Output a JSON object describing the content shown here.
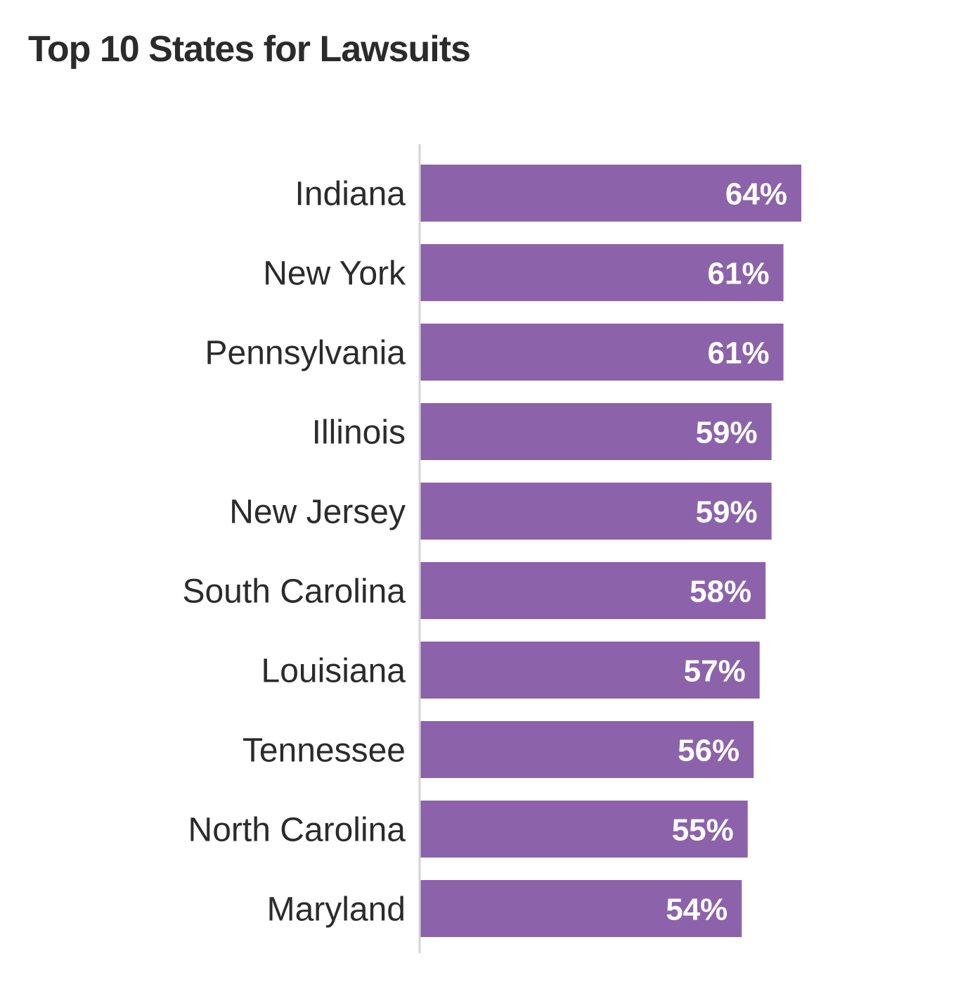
{
  "chart_data": {
    "type": "bar",
    "orientation": "horizontal",
    "title": "Top 10 States for Lawsuits",
    "categories": [
      "Indiana",
      "New York",
      "Pennsylvania",
      "Illinois",
      "New Jersey",
      "South Carolina",
      "Louisiana",
      "Tennessee",
      "North Carolina",
      "Maryland"
    ],
    "values": [
      64,
      61,
      61,
      59,
      59,
      58,
      57,
      56,
      55,
      54
    ],
    "value_labels": [
      "64%",
      "61%",
      "61%",
      "59%",
      "59%",
      "58%",
      "57%",
      "56%",
      "55%",
      "54%"
    ],
    "unit": "%",
    "xlim": [
      0,
      65
    ],
    "grid": false,
    "legend": "none",
    "bar_color": "#8c63aa"
  }
}
